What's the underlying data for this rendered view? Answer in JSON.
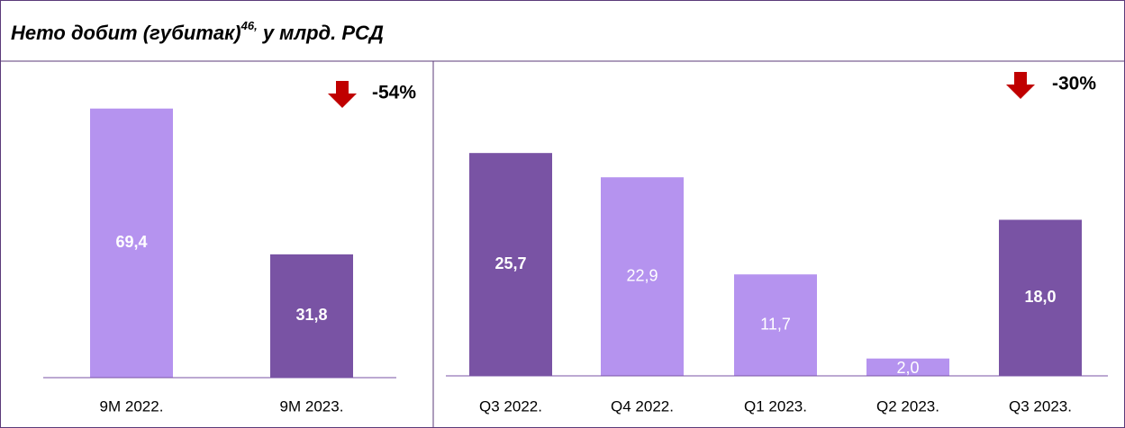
{
  "header": {
    "title": "Нето добит (губитак)",
    "sup": "46,",
    "rest": " у млрд. РСД"
  },
  "chart_data": [
    {
      "type": "bar",
      "categories": [
        "9M 2022.",
        "9M 2023."
      ],
      "values": [
        69.4,
        31.8
      ],
      "value_labels": [
        "69,4",
        "31,8"
      ],
      "colors": [
        "#b593ef",
        "#7953a4"
      ],
      "value_label_bold": [
        true,
        true
      ],
      "ylim": [
        0,
        80
      ],
      "annotation": "-54%"
    },
    {
      "type": "bar",
      "categories": [
        "Q3 2022.",
        "Q4 2022.",
        "Q1 2023.",
        "Q2 2023.",
        "Q3 2023."
      ],
      "values": [
        25.7,
        22.9,
        11.7,
        2.0,
        18.0
      ],
      "value_labels": [
        "25,7",
        "22,9",
        "11,7",
        "2,0",
        "18,0"
      ],
      "colors": [
        "#7953a4",
        "#b593ef",
        "#b593ef",
        "#b593ef",
        "#7953a4"
      ],
      "value_label_bold": [
        true,
        false,
        false,
        false,
        true
      ],
      "ylim": [
        0,
        28
      ],
      "annotation": "-30%"
    }
  ]
}
